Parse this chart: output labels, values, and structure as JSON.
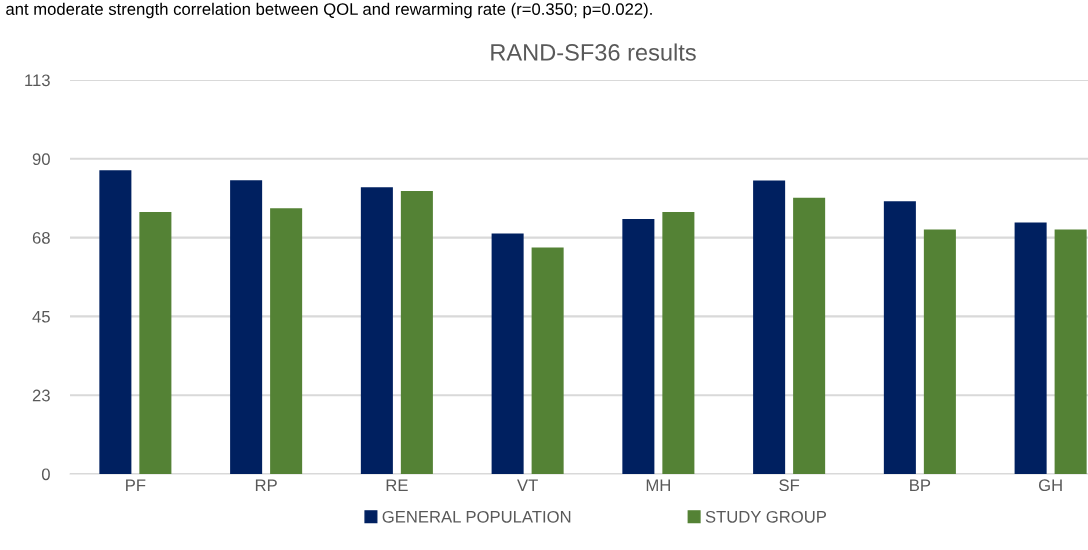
{
  "chart_data": {
    "type": "bar",
    "title": "RAND-SF36 results",
    "annotations": [
      "ant moderate strength correlation between QOL and rewarming rate (r=0.350; p=0.022)."
    ],
    "categories": [
      "PF",
      "RP",
      "RE",
      "VT",
      "MH",
      "SF",
      "BP",
      "GH"
    ],
    "series": [
      {
        "name": "GENERAL POPULATION",
        "color": "#002060",
        "values": [
          86.7,
          83.9,
          81.9,
          68.7,
          72.8,
          83.8,
          77.9,
          71.8
        ]
      },
      {
        "name": "STUDY GROUP",
        "color": "#548235",
        "values": [
          74.8,
          75.9,
          80.8,
          64.7,
          74.8,
          78.9,
          69.8,
          69.8
        ]
      }
    ],
    "ylim": [
      0,
      112.5
    ],
    "yticks": [
      0,
      {
        "value": 22.5,
        "label": "23"
      },
      45,
      {
        "value": 67.5,
        "label": "68"
      },
      90,
      {
        "value": 112.5,
        "label": "113"
      }
    ],
    "grid": "y",
    "legend": "bottom"
  }
}
